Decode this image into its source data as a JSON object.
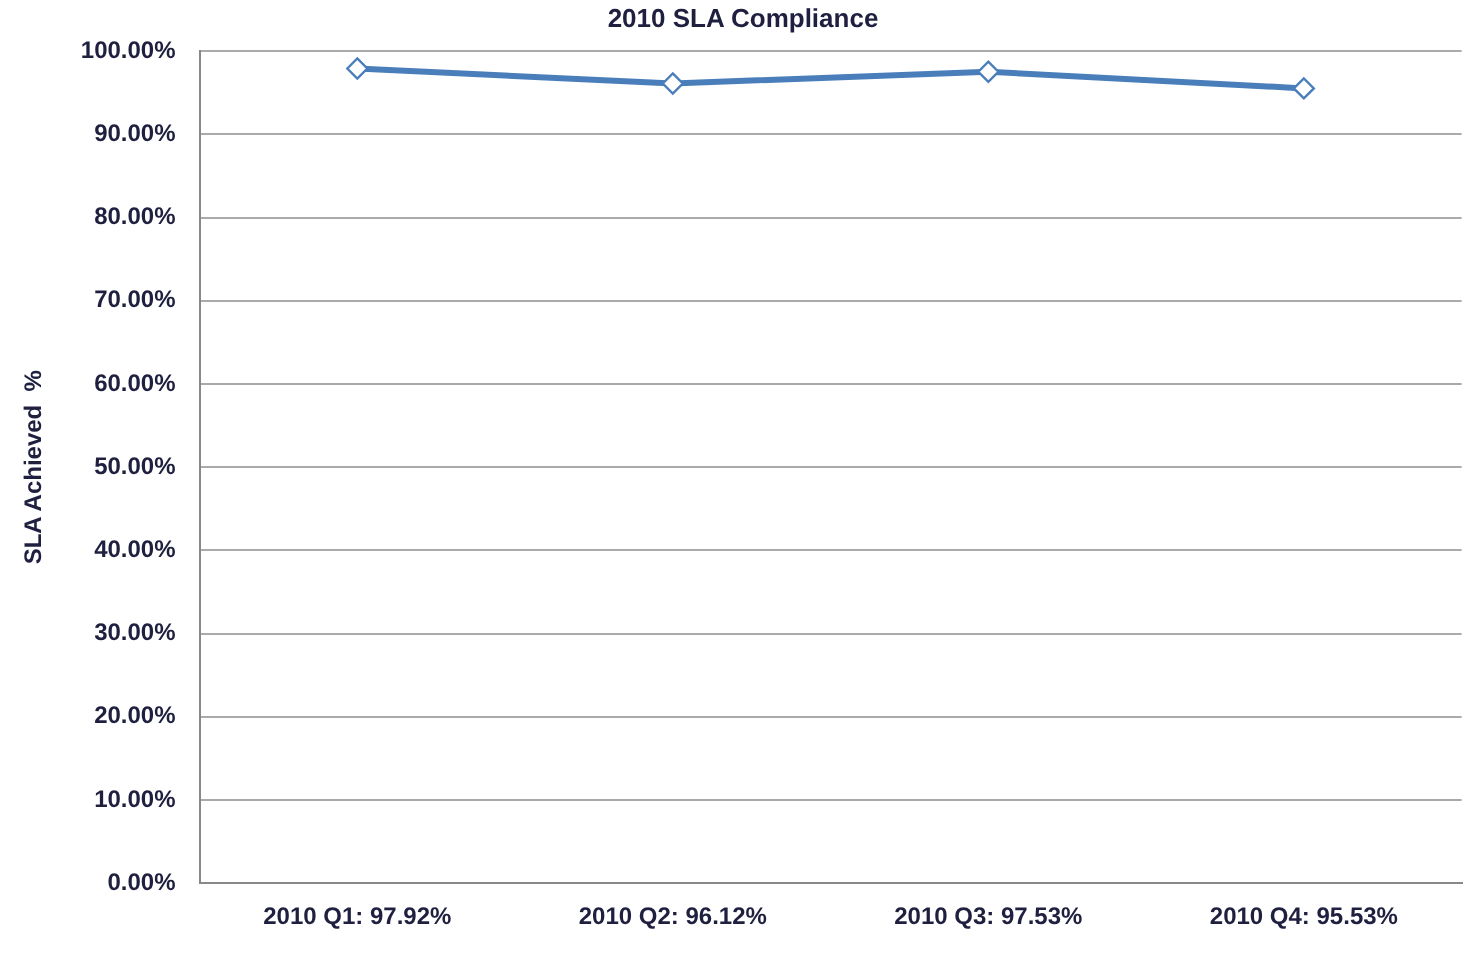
{
  "chart_data": {
    "type": "line",
    "title": "2010 SLA Compliance",
    "ylabel": "SLA Achieved  %",
    "categories": [
      "2010 Q1: 97.92%",
      "2010 Q2: 96.12%",
      "2010 Q3: 97.53%",
      "2010 Q4: 95.53%"
    ],
    "series": [
      {
        "color": "#4a7ebb",
        "values": [
          97.92,
          96.12,
          97.53,
          95.53
        ]
      }
    ],
    "ylim": [
      0,
      100
    ],
    "yticks": [
      {
        "value": 0,
        "label": "0.00%"
      },
      {
        "value": 10,
        "label": "10.00%"
      },
      {
        "value": 20,
        "label": "20.00%"
      },
      {
        "value": 30,
        "label": "30.00%"
      },
      {
        "value": 40,
        "label": "40.00%"
      },
      {
        "value": 50,
        "label": "50.00%"
      },
      {
        "value": 60,
        "label": "60.00%"
      },
      {
        "value": 70,
        "label": "70.00%"
      },
      {
        "value": 80,
        "label": "80.00%"
      },
      {
        "value": 90,
        "label": "90.00%"
      },
      {
        "value": 100,
        "label": "100.00%"
      }
    ],
    "grid": "y",
    "legend": false,
    "marker": "diamond",
    "line_style": "solid"
  }
}
